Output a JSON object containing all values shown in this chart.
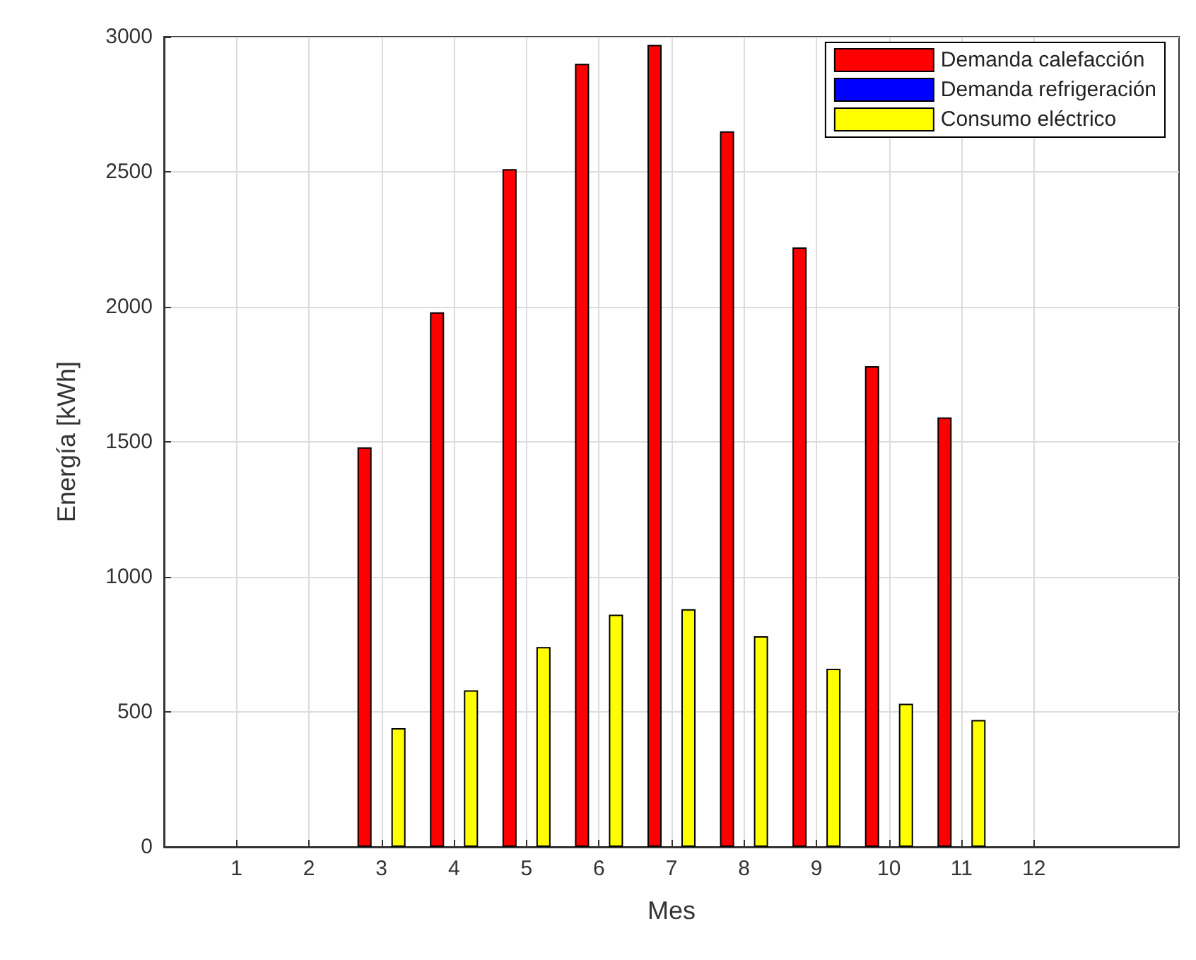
{
  "chart_data": {
    "type": "bar",
    "xlabel": "Mes",
    "ylabel": "Energía [kWh]",
    "x": [
      1,
      2,
      3,
      4,
      5,
      6,
      7,
      8,
      9,
      10,
      11,
      12
    ],
    "series": [
      {
        "name": "Demanda calefacción",
        "color": "#ff0000",
        "values": [
          0,
          0,
          1480,
          1980,
          2510,
          2900,
          2970,
          2650,
          2220,
          1780,
          1590,
          0
        ]
      },
      {
        "name": "Demanda refrigeración",
        "color": "#0000ff",
        "values": [
          0,
          0,
          0,
          0,
          0,
          0,
          0,
          0,
          0,
          0,
          0,
          0
        ]
      },
      {
        "name": "Consumo eléctrico",
        "color": "#ffff00",
        "values": [
          0,
          0,
          440,
          580,
          740,
          860,
          880,
          780,
          660,
          530,
          470,
          0
        ]
      }
    ],
    "xlim": [
      0,
      14
    ],
    "xticks": [
      1,
      2,
      3,
      4,
      5,
      6,
      7,
      8,
      9,
      10,
      11,
      12
    ],
    "ylim": [
      0,
      3000
    ],
    "yticks": [
      0,
      500,
      1000,
      1500,
      2000,
      2500,
      3000
    ],
    "grid": true,
    "legend": "top right"
  }
}
